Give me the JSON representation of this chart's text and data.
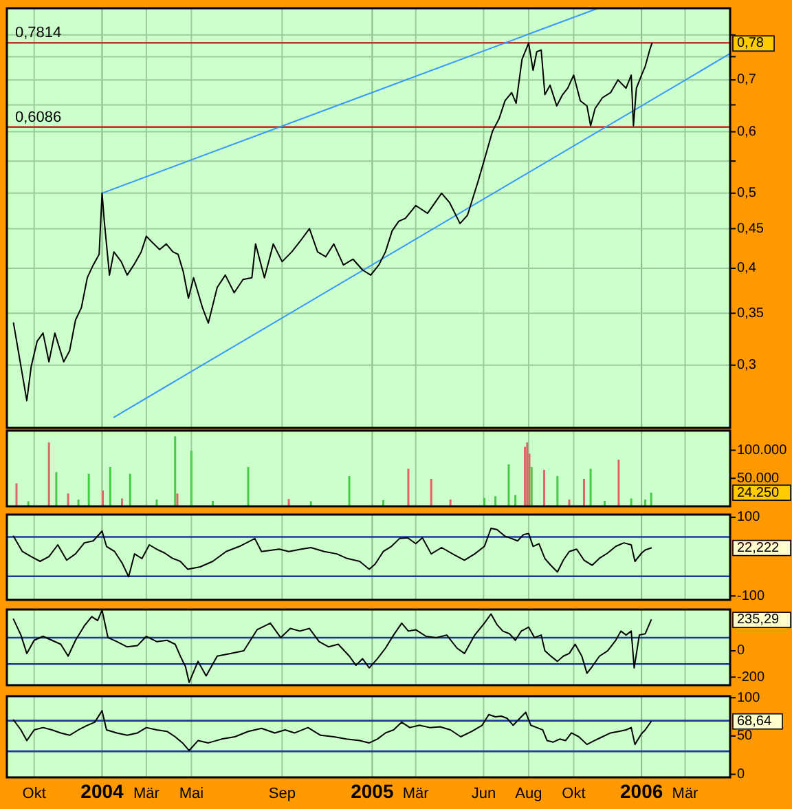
{
  "chart_data": [
    {
      "type": "line",
      "log": true,
      "grid": true,
      "tick_labels": "y",
      "xlim": [
        "2003-08-25",
        "2006-05-01"
      ],
      "xticks": [
        {
          "value": "2003-10-01",
          "label": null
        },
        {
          "value": "2004-01-01",
          "label": null
        },
        {
          "value": "2004-03-01",
          "label": null
        },
        {
          "value": "2004-05-01",
          "label": null
        },
        {
          "value": "2004-09-01",
          "label": null
        },
        {
          "value": "2005-01-01",
          "label": null
        },
        {
          "value": "2005-03-01",
          "label": null
        },
        {
          "value": "2005-06-01",
          "label": null
        },
        {
          "value": "2005-08-01",
          "label": null
        },
        {
          "value": "2005-10-01",
          "label": null
        },
        {
          "value": "2006-01-01",
          "label": null
        },
        {
          "value": "2006-03-01",
          "label": null
        }
      ],
      "ylim": [
        0.249,
        0.866
      ],
      "yticks": [
        {
          "value": 0.3,
          "label": "0,3"
        },
        {
          "value": 0.35,
          "label": "0,35"
        },
        {
          "value": 0.4,
          "label": "0,4"
        },
        {
          "value": 0.45,
          "label": "0,45"
        },
        {
          "value": 0.5,
          "label": "0,5"
        },
        {
          "value": 0.55,
          "label": null
        },
        {
          "value": 0.6,
          "label": "0,6"
        },
        {
          "value": 0.65,
          "label": null
        },
        {
          "value": 0.7,
          "label": "0,7"
        },
        {
          "value": 0.75,
          "label": null
        },
        {
          "value": 0.8,
          "label": null
        }
      ],
      "ref_lines": [
        {
          "axis": "y",
          "value": 0.7814,
          "label": "0,7814",
          "color": "#c0392b"
        },
        {
          "axis": "y",
          "value": 0.6086,
          "label": "0,6086",
          "color": "#c0392b"
        }
      ],
      "annotations": [
        "0,78"
      ],
      "series": [
        {
          "color": "#000000",
          "x": [
            "2003-09-03",
            "2003-09-21",
            "2003-09-27",
            "2003-10-05",
            "2003-10-13",
            "2003-10-21",
            "2003-10-29",
            "2003-11-10",
            "2003-11-18",
            "2003-11-26",
            "2003-12-04",
            "2003-12-12",
            "2003-12-20",
            "2003-12-28",
            "2004-01-01",
            "2004-01-04",
            "2004-01-11",
            "2004-01-17",
            "2004-01-27",
            "2004-02-04",
            "2004-02-13",
            "2004-02-23",
            "2004-03-01",
            "2004-03-08",
            "2004-03-19",
            "2004-03-28",
            "2004-04-06",
            "2004-04-13",
            "2004-04-20",
            "2004-04-27",
            "2004-05-04",
            "2004-05-16",
            "2004-05-24",
            "2004-06-05",
            "2004-06-16",
            "2004-06-28",
            "2004-07-10",
            "2004-07-22",
            "2004-07-27",
            "2004-08-08",
            "2004-08-20",
            "2004-09-01",
            "2004-09-14",
            "2004-09-25",
            "2004-10-08",
            "2004-10-19",
            "2004-10-30",
            "2004-11-10",
            "2004-11-23",
            "2004-12-06",
            "2004-12-19",
            "2004-12-30",
            "2005-01-10",
            "2005-01-19",
            "2005-01-28",
            "2005-02-06",
            "2005-02-15",
            "2005-03-01",
            "2005-03-17",
            "2005-04-05",
            "2005-04-16",
            "2005-04-30",
            "2005-05-10",
            "2005-05-24",
            "2005-06-05",
            "2005-06-13",
            "2005-06-22",
            "2005-06-30",
            "2005-07-09",
            "2005-07-15",
            "2005-07-23",
            "2005-08-01",
            "2005-08-07",
            "2005-08-12",
            "2005-08-18",
            "2005-08-23",
            "2005-08-30",
            "2005-09-08",
            "2005-09-16",
            "2005-09-23",
            "2005-10-01",
            "2005-10-10",
            "2005-10-19",
            "2005-10-24",
            "2005-10-30",
            "2005-11-09",
            "2005-11-20",
            "2005-11-30",
            "2005-12-11",
            "2005-12-18",
            "2005-12-21",
            "2005-12-25",
            "2006-01-01",
            "2006-01-06",
            "2006-01-12",
            "2006-01-15"
          ],
          "values": [
            0.34,
            0.27,
            0.299,
            0.322,
            0.33,
            0.303,
            0.33,
            0.303,
            0.313,
            0.343,
            0.356,
            0.389,
            0.404,
            0.417,
            0.5,
            0.46,
            0.392,
            0.42,
            0.408,
            0.392,
            0.404,
            0.42,
            0.44,
            0.433,
            0.423,
            0.43,
            0.42,
            0.417,
            0.396,
            0.366,
            0.389,
            0.356,
            0.34,
            0.378,
            0.392,
            0.372,
            0.387,
            0.389,
            0.43,
            0.389,
            0.43,
            0.408,
            0.42,
            0.433,
            0.45,
            0.42,
            0.414,
            0.43,
            0.404,
            0.411,
            0.398,
            0.392,
            0.404,
            0.42,
            0.447,
            0.46,
            0.464,
            0.482,
            0.471,
            0.5,
            0.486,
            0.457,
            0.468,
            0.516,
            0.565,
            0.601,
            0.624,
            0.658,
            0.674,
            0.653,
            0.744,
            0.781,
            0.72,
            0.761,
            0.765,
            0.67,
            0.689,
            0.648,
            0.67,
            0.683,
            0.71,
            0.658,
            0.648,
            0.611,
            0.643,
            0.664,
            0.674,
            0.7,
            0.683,
            0.71,
            0.611,
            0.683,
            0.71,
            0.729,
            0.765,
            0.78
          ]
        },
        {
          "type": "line",
          "color": "#3399ff",
          "x": [
            "2004-01-01",
            "2005-11-03"
          ],
          "values": [
            0.5,
            0.866
          ]
        },
        {
          "type": "line",
          "color": "#3399ff",
          "x": [
            "2004-01-17",
            "2006-04-30"
          ],
          "values": [
            0.257,
            0.756
          ]
        }
      ]
    },
    {
      "type": "bar",
      "grid": "x",
      "tick_labels": "y",
      "xlim": [
        "2003-08-25",
        "2006-05-01"
      ],
      "xticks": [
        {
          "value": "2003-10-01",
          "label": null
        },
        {
          "value": "2004-01-01",
          "label": null
        },
        {
          "value": "2004-03-01",
          "label": null
        },
        {
          "value": "2004-05-01",
          "label": null
        },
        {
          "value": "2004-09-01",
          "label": null
        },
        {
          "value": "2005-01-01",
          "label": null
        },
        {
          "value": "2005-03-01",
          "label": null
        },
        {
          "value": "2005-06-01",
          "label": null
        },
        {
          "value": "2005-08-01",
          "label": null
        },
        {
          "value": "2005-10-01",
          "label": null
        },
        {
          "value": "2006-01-01",
          "label": null
        },
        {
          "value": "2006-03-01",
          "label": null
        }
      ],
      "ylim": [
        0,
        135000
      ],
      "yticks": [
        {
          "value": 50000,
          "label": "50.000"
        },
        {
          "value": 100000,
          "label": "100.000"
        }
      ],
      "annotations": [
        "24.250"
      ],
      "x": [
        "2003-09-07",
        "2003-09-23",
        "2003-10-21",
        "2003-10-31",
        "2003-11-16",
        "2003-11-30",
        "2003-12-14",
        "2004-01-02",
        "2004-01-12",
        "2004-01-28",
        "2004-02-08",
        "2004-03-15",
        "2004-04-09",
        "2004-04-12",
        "2004-05-01",
        "2004-05-30",
        "2004-07-17",
        "2004-09-10",
        "2004-10-10",
        "2004-12-01",
        "2005-01-16",
        "2005-02-19",
        "2005-03-22",
        "2005-04-17",
        "2005-06-02",
        "2005-06-17",
        "2005-07-05",
        "2005-07-14",
        "2005-07-27",
        "2005-07-30",
        "2005-08-02",
        "2005-08-05",
        "2005-08-22",
        "2005-09-09",
        "2005-09-25",
        "2005-10-15",
        "2005-10-24",
        "2005-11-12",
        "2005-12-01",
        "2005-12-18",
        "2006-01-06",
        "2006-01-14"
      ],
      "values": [
        41000,
        9000,
        114000,
        61000,
        23000,
        12000,
        58000,
        28000,
        70000,
        14000,
        58000,
        12000,
        125000,
        23000,
        99000,
        10000,
        70000,
        13000,
        9000,
        54000,
        11000,
        67000,
        49000,
        12000,
        15000,
        18000,
        75000,
        20000,
        106000,
        114000,
        94000,
        70000,
        65000,
        54000,
        12000,
        49000,
        67000,
        10000,
        83000,
        14000,
        12000,
        24250
      ],
      "colors": [
        "#e06666",
        "#44cc44",
        "#e06666",
        "#44cc44",
        "#e06666",
        "#44cc44",
        "#44cc44",
        "#e06666",
        "#44cc44",
        "#e06666",
        "#44cc44",
        "#44cc44",
        "#44cc44",
        "#e06666",
        "#44cc44",
        "#44cc44",
        "#44cc44",
        "#e06666",
        "#44cc44",
        "#44cc44",
        "#44cc44",
        "#e06666",
        "#e06666",
        "#e06666",
        "#44cc44",
        "#44cc44",
        "#44cc44",
        "#44cc44",
        "#e06666",
        "#e06666",
        "#e06666",
        "#44cc44",
        "#e06666",
        "#44cc44",
        "#e06666",
        "#e06666",
        "#44cc44",
        "#44cc44",
        "#e06666",
        "#44cc44",
        "#44cc44",
        "#44cc44"
      ]
    },
    {
      "type": "line",
      "grid": "x",
      "tick_labels": "y",
      "xlim": [
        "2003-08-25",
        "2006-05-01"
      ],
      "xticks": [
        {
          "value": "2003-10-01",
          "label": null
        },
        {
          "value": "2004-01-01",
          "label": null
        },
        {
          "value": "2004-03-01",
          "label": null
        },
        {
          "value": "2004-05-01",
          "label": null
        },
        {
          "value": "2004-09-01",
          "label": null
        },
        {
          "value": "2005-01-01",
          "label": null
        },
        {
          "value": "2005-03-01",
          "label": null
        },
        {
          "value": "2005-06-01",
          "label": null
        },
        {
          "value": "2005-08-01",
          "label": null
        },
        {
          "value": "2005-10-01",
          "label": null
        },
        {
          "value": "2006-01-01",
          "label": null
        },
        {
          "value": "2006-03-01",
          "label": null
        }
      ],
      "ylim": [
        -110,
        107
      ],
      "yticks": [
        100,
        -100
      ],
      "ref_lines": [
        {
          "axis": "y",
          "value": 50,
          "color": "#1a3a9a"
        },
        {
          "axis": "y",
          "value": -50,
          "color": "#1a3a9a"
        }
      ],
      "annotations": [
        "22,222"
      ],
      "series": [
        {
          "color": "#000000",
          "x": [
            "2003-09-03",
            "2003-09-15",
            "2003-09-27",
            "2003-10-09",
            "2003-10-21",
            "2003-11-02",
            "2003-11-14",
            "2003-11-26",
            "2003-12-08",
            "2003-12-20",
            "2004-01-01",
            "2004-01-07",
            "2004-01-18",
            "2004-01-28",
            "2004-02-06",
            "2004-02-14",
            "2004-02-24",
            "2004-03-05",
            "2004-03-15",
            "2004-03-26",
            "2004-04-05",
            "2004-04-16",
            "2004-04-26",
            "2004-05-13",
            "2004-05-30",
            "2004-06-17",
            "2004-07-05",
            "2004-07-26",
            "2004-08-04",
            "2004-08-28",
            "2004-09-10",
            "2004-09-27",
            "2004-10-10",
            "2004-10-28",
            "2004-11-14",
            "2004-11-27",
            "2004-12-15",
            "2004-12-28",
            "2005-01-05",
            "2005-01-16",
            "2005-01-27",
            "2005-02-07",
            "2005-02-18",
            "2005-03-01",
            "2005-03-10",
            "2005-03-22",
            "2005-04-05",
            "2005-04-22",
            "2005-05-06",
            "2005-05-20",
            "2005-06-02",
            "2005-06-11",
            "2005-06-19",
            "2005-06-30",
            "2005-07-09",
            "2005-07-17",
            "2005-07-25",
            "2005-08-01",
            "2005-08-07",
            "2005-08-15",
            "2005-08-23",
            "2005-08-31",
            "2005-09-09",
            "2005-09-17",
            "2005-09-25",
            "2005-10-05",
            "2005-10-15",
            "2005-10-26",
            "2005-11-05",
            "2005-11-16",
            "2005-11-27",
            "2005-12-08",
            "2005-12-18",
            "2005-12-23",
            "2006-01-01",
            "2006-01-06",
            "2006-01-14"
          ],
          "values": [
            52,
            13,
            0,
            -12,
            0,
            30,
            -9,
            7,
            35,
            40,
            65,
            26,
            13,
            -16,
            -51,
            7,
            -5,
            30,
            19,
            9,
            -4,
            -12,
            -32,
            -26,
            -12,
            13,
            26,
            46,
            13,
            19,
            13,
            19,
            23,
            13,
            7,
            -4,
            -12,
            -32,
            -19,
            13,
            26,
            46,
            48,
            33,
            48,
            7,
            23,
            5,
            -9,
            7,
            26,
            72,
            69,
            52,
            46,
            40,
            56,
            59,
            26,
            33,
            -5,
            -22,
            -39,
            -9,
            13,
            19,
            -9,
            -22,
            -4,
            9,
            26,
            35,
            30,
            -12,
            9,
            17,
            22
          ]
        }
      ]
    },
    {
      "type": "line",
      "grid": "x",
      "tick_labels": "y",
      "xlim": [
        "2003-08-25",
        "2006-05-01"
      ],
      "xticks": [
        {
          "value": "2003-10-01",
          "label": null
        },
        {
          "value": "2004-01-01",
          "label": null
        },
        {
          "value": "2004-03-01",
          "label": null
        },
        {
          "value": "2004-05-01",
          "label": null
        },
        {
          "value": "2004-09-01",
          "label": null
        },
        {
          "value": "2005-01-01",
          "label": null
        },
        {
          "value": "2005-03-01",
          "label": null
        },
        {
          "value": "2005-06-01",
          "label": null
        },
        {
          "value": "2005-08-01",
          "label": null
        },
        {
          "value": "2005-10-01",
          "label": null
        },
        {
          "value": "2006-01-01",
          "label": null
        },
        {
          "value": "2006-03-01",
          "label": null
        }
      ],
      "ylim": [
        -261,
        314
      ],
      "yticks": [
        0,
        -200
      ],
      "ref_lines": [
        {
          "axis": "y",
          "value": 100,
          "color": "#1a3a9a"
        },
        {
          "axis": "y",
          "value": -100,
          "color": "#1a3a9a"
        }
      ],
      "annotations": [
        "235,29"
      ],
      "series": [
        {
          "color": "#000000",
          "x": [
            "2003-09-03",
            "2003-09-13",
            "2003-09-21",
            "2003-10-01",
            "2003-10-13",
            "2003-10-25",
            "2003-11-06",
            "2003-11-16",
            "2003-11-26",
            "2003-12-08",
            "2003-12-18",
            "2003-12-26",
            "2004-01-01",
            "2004-01-09",
            "2004-01-21",
            "2004-02-04",
            "2004-02-18",
            "2004-03-01",
            "2004-03-15",
            "2004-03-29",
            "2004-04-09",
            "2004-04-16",
            "2004-04-23",
            "2004-04-28",
            "2004-05-10",
            "2004-05-21",
            "2004-06-05",
            "2004-06-23",
            "2004-07-11",
            "2004-07-29",
            "2004-08-16",
            "2004-08-30",
            "2004-09-12",
            "2004-09-25",
            "2004-10-08",
            "2004-10-21",
            "2004-11-03",
            "2004-11-16",
            "2004-12-01",
            "2004-12-10",
            "2004-12-19",
            "2004-12-28",
            "2005-01-08",
            "2005-01-19",
            "2005-01-30",
            "2005-02-10",
            "2005-02-19",
            "2005-03-01",
            "2005-03-15",
            "2005-03-29",
            "2005-04-12",
            "2005-04-26",
            "2005-05-06",
            "2005-05-20",
            "2005-06-02",
            "2005-06-11",
            "2005-06-19",
            "2005-06-27",
            "2005-07-06",
            "2005-07-14",
            "2005-07-22",
            "2005-08-01",
            "2005-08-09",
            "2005-08-18",
            "2005-08-23",
            "2005-08-31",
            "2005-09-09",
            "2005-09-17",
            "2005-09-25",
            "2005-10-03",
            "2005-10-12",
            "2005-10-19",
            "2005-10-26",
            "2005-11-05",
            "2005-11-16",
            "2005-11-27",
            "2005-12-04",
            "2005-12-11",
            "2005-12-18",
            "2005-12-22",
            "2005-12-29",
            "2006-01-06",
            "2006-01-14"
          ],
          "values": [
            240,
            120,
            -20,
            80,
            110,
            80,
            50,
            -40,
            80,
            190,
            260,
            230,
            310,
            100,
            70,
            30,
            40,
            110,
            70,
            80,
            50,
            -40,
            -120,
            -240,
            -80,
            -190,
            -40,
            -20,
            0,
            160,
            210,
            100,
            170,
            150,
            170,
            70,
            30,
            50,
            -40,
            -110,
            -60,
            -130,
            -60,
            20,
            120,
            210,
            150,
            160,
            110,
            100,
            120,
            20,
            -20,
            120,
            210,
            280,
            200,
            150,
            130,
            80,
            150,
            180,
            100,
            120,
            0,
            -40,
            -80,
            -40,
            -20,
            50,
            -40,
            -170,
            -120,
            -40,
            0,
            80,
            150,
            120,
            150,
            -130,
            120,
            130,
            235
          ]
        }
      ]
    },
    {
      "type": "line",
      "grid": "x",
      "xlim": [
        "2003-08-25",
        "2006-05-01"
      ],
      "xticks": [
        {
          "value": "2003-10-01",
          "label": "Okt"
        },
        {
          "value": "2004-01-01",
          "label": "2004"
        },
        {
          "value": "2004-03-01",
          "label": "Mär"
        },
        {
          "value": "2004-05-01",
          "label": "Mai"
        },
        {
          "value": "2004-09-01",
          "label": "Sep"
        },
        {
          "value": "2005-01-01",
          "label": "2005"
        },
        {
          "value": "2005-03-01",
          "label": "Mär"
        },
        {
          "value": "2005-06-01",
          "label": "Jun"
        },
        {
          "value": "2005-08-01",
          "label": "Aug"
        },
        {
          "value": "2005-10-01",
          "label": "Okt"
        },
        {
          "value": "2006-01-01",
          "label": "2006"
        },
        {
          "value": "2006-03-01",
          "label": "Mär"
        }
      ],
      "ylim": [
        -4,
        102
      ],
      "yticks": [
        0,
        50,
        100
      ],
      "ref_lines": [
        {
          "axis": "y",
          "value": 70,
          "color": "#1a3a9a"
        },
        {
          "axis": "y",
          "value": 30,
          "color": "#1a3a9a"
        }
      ],
      "annotations": [
        "68,64"
      ],
      "series": [
        {
          "color": "#000000",
          "x": [
            "2003-09-03",
            "2003-09-13",
            "2003-09-21",
            "2003-10-01",
            "2003-10-13",
            "2003-10-25",
            "2003-11-06",
            "2003-11-18",
            "2003-11-30",
            "2003-12-12",
            "2003-12-22",
            "2004-01-01",
            "2004-01-07",
            "2004-01-21",
            "2004-02-04",
            "2004-02-18",
            "2004-03-01",
            "2004-03-15",
            "2004-03-29",
            "2004-04-09",
            "2004-04-19",
            "2004-04-28",
            "2004-05-10",
            "2004-05-24",
            "2004-06-11",
            "2004-06-29",
            "2004-07-17",
            "2004-08-04",
            "2004-08-22",
            "2004-09-05",
            "2004-09-18",
            "2004-10-06",
            "2004-10-23",
            "2004-11-10",
            "2004-11-27",
            "2004-12-15",
            "2004-12-28",
            "2005-01-08",
            "2005-01-19",
            "2005-01-30",
            "2005-02-10",
            "2005-02-21",
            "2005-03-06",
            "2005-03-20",
            "2005-04-03",
            "2005-04-17",
            "2005-05-01",
            "2005-05-16",
            "2005-05-30",
            "2005-06-08",
            "2005-06-17",
            "2005-06-25",
            "2005-07-03",
            "2005-07-11",
            "2005-07-20",
            "2005-07-28",
            "2005-08-04",
            "2005-08-12",
            "2005-08-20",
            "2005-08-26",
            "2005-09-03",
            "2005-09-12",
            "2005-09-20",
            "2005-09-28",
            "2005-10-08",
            "2005-10-19",
            "2005-10-29",
            "2005-11-09",
            "2005-11-20",
            "2005-12-01",
            "2005-12-11",
            "2005-12-18",
            "2005-12-23",
            "2006-01-01",
            "2006-01-06",
            "2006-01-14"
          ],
          "values": [
            71,
            58,
            44,
            58,
            61,
            58,
            54,
            51,
            58,
            64,
            68,
            83,
            58,
            54,
            51,
            54,
            61,
            58,
            56,
            49,
            41,
            31,
            44,
            41,
            46,
            49,
            56,
            60,
            54,
            58,
            54,
            61,
            51,
            49,
            46,
            44,
            41,
            46,
            54,
            58,
            68,
            61,
            64,
            61,
            62,
            58,
            49,
            56,
            64,
            78,
            75,
            76,
            73,
            64,
            73,
            81,
            64,
            61,
            58,
            44,
            42,
            46,
            44,
            54,
            49,
            39,
            44,
            49,
            54,
            56,
            58,
            61,
            39,
            53,
            58,
            69
          ]
        }
      ]
    }
  ]
}
